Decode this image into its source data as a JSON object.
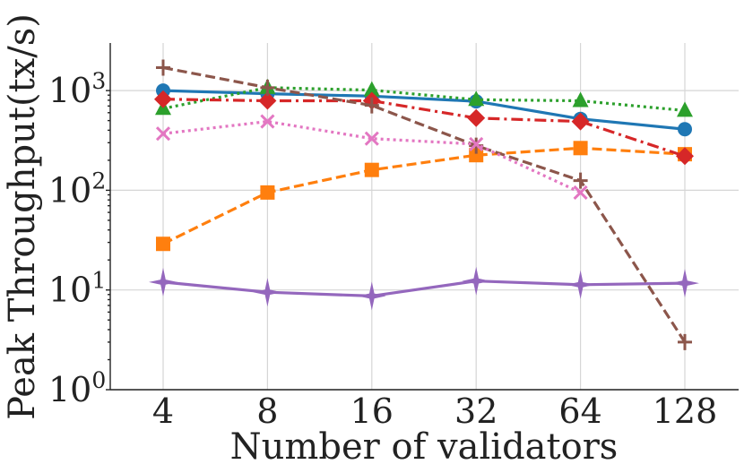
{
  "chart_data": {
    "type": "line",
    "title": "",
    "xlabel": "Number of validators",
    "ylabel": "Peak Throughput(tx/s)",
    "xscale": "log2",
    "yscale": "log",
    "x": [
      4,
      8,
      16,
      32,
      64,
      128
    ],
    "x_tick_labels": [
      "4",
      "8",
      "16",
      "32",
      "64",
      "128"
    ],
    "y_ticks": [
      {
        "value": 1,
        "base": "10",
        "exp": "0"
      },
      {
        "value": 10,
        "base": "10",
        "exp": "1"
      },
      {
        "value": 100,
        "base": "10",
        "exp": "2"
      },
      {
        "value": 1000,
        "base": "10",
        "exp": "3"
      }
    ],
    "ylim": [
      1,
      3000
    ],
    "grid": true,
    "legend": "none",
    "series": [
      {
        "id": "blue",
        "color": "#1f77b4",
        "dash": "solid",
        "marker": "circle",
        "x": [
          4,
          8,
          16,
          32,
          64,
          128
        ],
        "values": [
          1000,
          930,
          880,
          780,
          520,
          410
        ]
      },
      {
        "id": "orange",
        "color": "#ff7f0e",
        "dash": "dashed",
        "marker": "square",
        "x": [
          4,
          8,
          16,
          32,
          64,
          128
        ],
        "values": [
          29,
          95,
          160,
          225,
          265,
          230
        ]
      },
      {
        "id": "green",
        "color": "#2ca02c",
        "dash": "dotted",
        "marker": "triangle",
        "x": [
          4,
          8,
          16,
          32,
          64,
          128
        ],
        "values": [
          660,
          1070,
          1010,
          810,
          790,
          630
        ]
      },
      {
        "id": "red",
        "color": "#d62728",
        "dash": "dashdot",
        "marker": "diamond",
        "x": [
          4,
          8,
          16,
          32,
          64,
          128
        ],
        "values": [
          820,
          790,
          790,
          530,
          490,
          220
        ]
      },
      {
        "id": "purple",
        "color": "#9467bd",
        "dash": "solid",
        "marker": "star",
        "x": [
          4,
          8,
          16,
          32,
          64,
          128
        ],
        "values": [
          12,
          9.5,
          8.7,
          12.3,
          11.3,
          11.7
        ]
      },
      {
        "id": "brown",
        "color": "#8c564b",
        "dash": "dashed",
        "marker": "plus",
        "x": [
          4,
          8,
          16,
          32,
          64,
          128
        ],
        "values": [
          1700,
          1070,
          710,
          280,
          125,
          3
        ]
      },
      {
        "id": "pink",
        "color": "#e377c2",
        "dash": "dotted",
        "marker": "x",
        "x": [
          4,
          8,
          16,
          32,
          64
        ],
        "values": [
          370,
          490,
          330,
          290,
          95
        ]
      }
    ]
  }
}
